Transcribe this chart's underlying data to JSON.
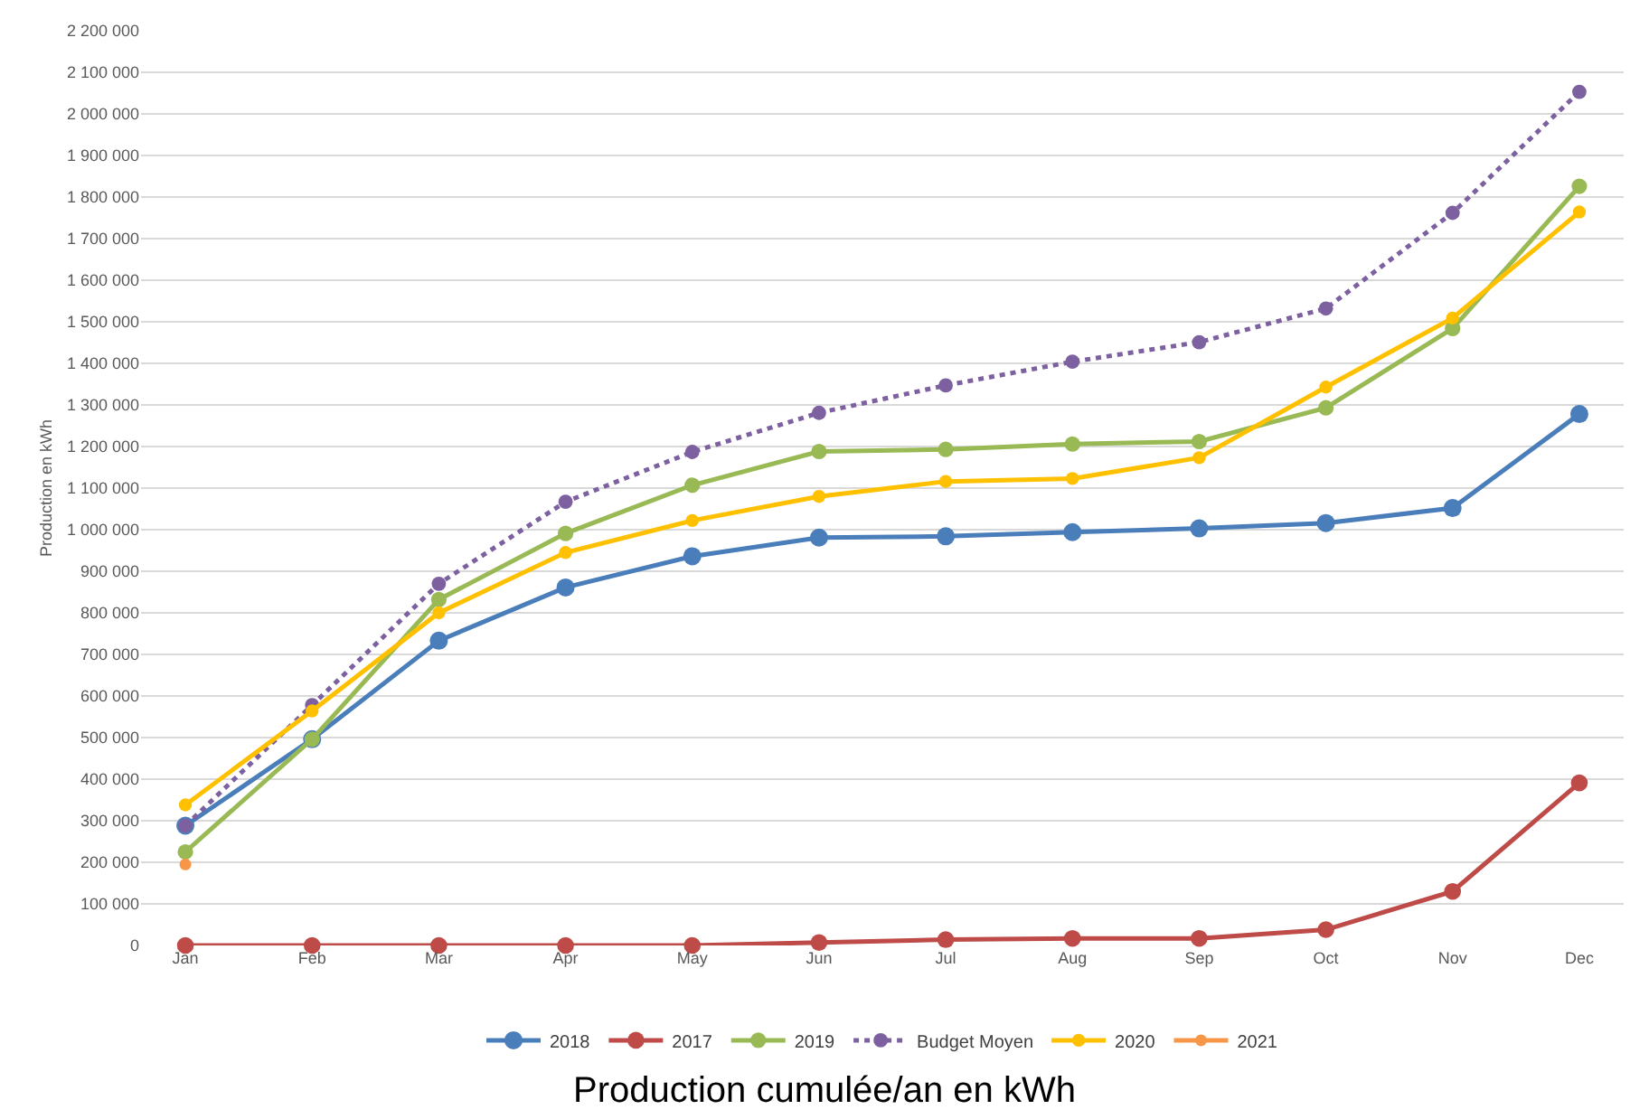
{
  "chart_data": {
    "type": "line",
    "title": "Production cumulée/an en kWh",
    "ylabel": "Production en kWh",
    "categories": [
      "Jan",
      "Feb",
      "Mar",
      "Apr",
      "May",
      "Jun",
      "Jul",
      "Aug",
      "Sep",
      "Oct",
      "Nov",
      "Dec"
    ],
    "series": [
      {
        "name": "2018",
        "color": "#4a7ebb",
        "values": [
          288000,
          496000,
          733000,
          861000,
          936000,
          981000,
          984000,
          994000,
          1003000,
          1016000,
          1052000,
          1278000
        ]
      },
      {
        "name": "2017",
        "color": "#be4b48",
        "values": [
          0,
          0,
          0,
          0,
          0,
          7000,
          14000,
          17000,
          17000,
          38000,
          130000,
          391000
        ]
      },
      {
        "name": "2019",
        "color": "#98b954",
        "values": [
          225000,
          496000,
          832000,
          991000,
          1107000,
          1188000,
          1193000,
          1206000,
          1212000,
          1293000,
          1484000,
          1826000
        ]
      },
      {
        "name": "Budget Moyen",
        "color": "#7d60a0",
        "line_style": "dotted",
        "values": [
          288000,
          578000,
          870000,
          1067000,
          1187000,
          1281000,
          1347000,
          1404000,
          1451000,
          1532000,
          1762000,
          2053000
        ]
      },
      {
        "name": "2020",
        "color": "#ffc000",
        "values": [
          338000,
          564000,
          800000,
          945000,
          1022000,
          1080000,
          1116000,
          1123000,
          1173000,
          1343000,
          1509000,
          1764000
        ]
      },
      {
        "name": "2021",
        "color": "#f79646",
        "values": [
          195000,
          null,
          null,
          null,
          null,
          null,
          null,
          null,
          null,
          null,
          null,
          null
        ]
      }
    ],
    "ylim": [
      0,
      2200000
    ],
    "yticks": [
      0,
      {
        "value": 100000,
        "label": "100 000"
      },
      {
        "value": 200000,
        "label": "200 000"
      },
      {
        "value": 300000,
        "label": "300 000"
      },
      {
        "value": 400000,
        "label": "400 000"
      },
      {
        "value": 500000,
        "label": "500 000"
      },
      {
        "value": 600000,
        "label": "600 000"
      },
      {
        "value": 700000,
        "label": "700 000"
      },
      {
        "value": 800000,
        "label": "800 000"
      },
      {
        "value": 900000,
        "label": "900 000"
      },
      {
        "value": 1000000,
        "label": "1 000 000"
      },
      {
        "value": 1100000,
        "label": "1 100 000"
      },
      {
        "value": 1200000,
        "label": "1 200 000"
      },
      {
        "value": 1300000,
        "label": "1 300 000"
      },
      {
        "value": 1400000,
        "label": "1 400 000"
      },
      {
        "value": 1500000,
        "label": "1 500 000"
      },
      {
        "value": 1600000,
        "label": "1 600 000"
      },
      {
        "value": 1700000,
        "label": "1 700 000"
      },
      {
        "value": 1800000,
        "label": "1 800 000"
      },
      {
        "value": 1900000,
        "label": "1 900 000"
      },
      {
        "value": 2000000,
        "label": "2 000 000"
      },
      {
        "value": 2100000,
        "label": "2 100 000"
      },
      {
        "value": 2200000,
        "label": "2 200 000"
      }
    ],
    "grid": "y",
    "legend": "bottom",
    "marker": "circle",
    "line_style": "solid"
  }
}
